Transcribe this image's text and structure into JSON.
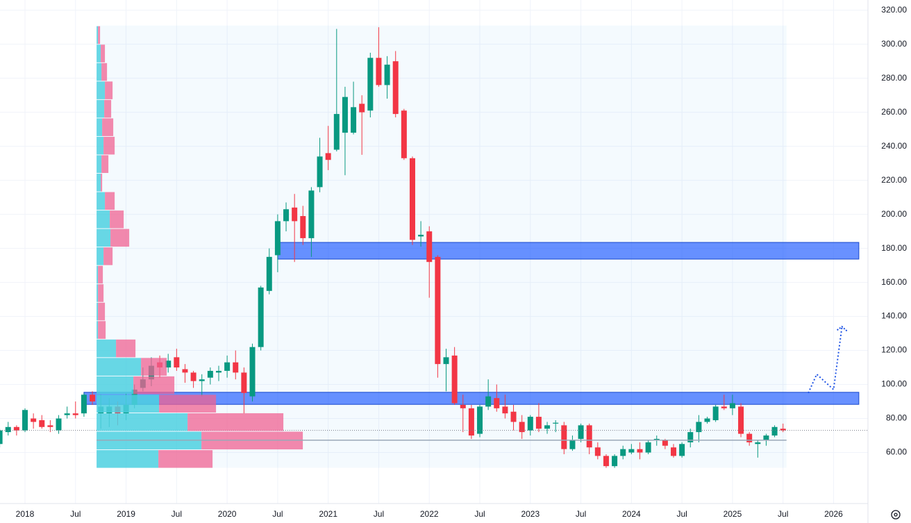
{
  "chart_data": {
    "type": "candlestick",
    "x": [
      "2017-10",
      "2017-11",
      "2017-12",
      "2018-01",
      "2018-02",
      "2018-03",
      "2018-04",
      "2018-05",
      "2018-06",
      "2018-07",
      "2018-08",
      "2018-09",
      "2018-10",
      "2018-11",
      "2018-12",
      "2019-01",
      "2019-02",
      "2019-03",
      "2019-04",
      "2019-05",
      "2019-06",
      "2019-07",
      "2019-08",
      "2019-09",
      "2019-10",
      "2019-11",
      "2019-12",
      "2020-01",
      "2020-02",
      "2020-03",
      "2020-04",
      "2020-05",
      "2020-06",
      "2020-07",
      "2020-08",
      "2020-09",
      "2020-10",
      "2020-11",
      "2020-12",
      "2021-01",
      "2021-02",
      "2021-03",
      "2021-04",
      "2021-05",
      "2021-06",
      "2021-07",
      "2021-08",
      "2021-09",
      "2021-10",
      "2021-11",
      "2021-12",
      "2022-01",
      "2022-02",
      "2022-03",
      "2022-04",
      "2022-05",
      "2022-06",
      "2022-07",
      "2022-08",
      "2022-09",
      "2022-10",
      "2022-11",
      "2022-12",
      "2023-01",
      "2023-02",
      "2023-03",
      "2023-04",
      "2023-05",
      "2023-06",
      "2023-07",
      "2023-08",
      "2023-09",
      "2023-10",
      "2023-11",
      "2023-12",
      "2024-01",
      "2024-02",
      "2024-03",
      "2024-04",
      "2024-05",
      "2024-06",
      "2024-07",
      "2024-08",
      "2024-09",
      "2024-10",
      "2024-11",
      "2024-12",
      "2025-01",
      "2025-02",
      "2025-03",
      "2025-04",
      "2025-05",
      "2025-06",
      "2025-07"
    ],
    "open": [
      65,
      72,
      75,
      73,
      80,
      79,
      76,
      73,
      82,
      83,
      83,
      94,
      83,
      83,
      87,
      83,
      88,
      98,
      103,
      113,
      110,
      116,
      109,
      107,
      102,
      104,
      107,
      108,
      113,
      107,
      93,
      122,
      155,
      176,
      196,
      204,
      199,
      186,
      216,
      236,
      238,
      248,
      248,
      265,
      261,
      292,
      276,
      290,
      261,
      233,
      187,
      190,
      175,
      112,
      117,
      88,
      86,
      71,
      87,
      92,
      87,
      84,
      78,
      73,
      81,
      74,
      77,
      76,
      62,
      68,
      76,
      63,
      58,
      52,
      58,
      60,
      62,
      60,
      67,
      67,
      63,
      58,
      66,
      72,
      78,
      79,
      87,
      86,
      87,
      71,
      65,
      67,
      70,
      74
    ],
    "high": [
      74,
      78,
      76,
      86,
      83,
      82,
      79,
      82,
      87,
      90,
      95,
      96,
      94,
      92,
      90,
      95,
      100,
      110,
      116,
      117,
      118,
      121,
      112,
      108,
      106,
      110,
      111,
      117,
      120,
      110,
      124,
      158,
      180,
      200,
      207,
      212,
      205,
      216,
      245,
      252,
      309,
      275,
      278,
      270,
      295,
      310,
      293,
      296,
      262,
      234,
      196,
      193,
      176,
      121,
      122,
      94,
      88,
      88,
      103,
      100,
      94,
      88,
      82,
      82,
      89,
      78,
      79,
      78,
      70,
      77,
      77,
      66,
      59,
      59,
      64,
      65,
      66,
      67,
      70,
      68,
      65,
      66,
      74,
      82,
      81,
      88,
      94,
      94,
      89,
      72,
      67,
      71,
      76,
      77
    ],
    "low": [
      63,
      70,
      70,
      72,
      74,
      74,
      72,
      71,
      80,
      80,
      81,
      88,
      74,
      75,
      76,
      79,
      86,
      96,
      99,
      104,
      107,
      108,
      101,
      98,
      93,
      100,
      102,
      104,
      103,
      83,
      90,
      120,
      153,
      166,
      190,
      172,
      182,
      175,
      213,
      226,
      237,
      223,
      247,
      235,
      257,
      275,
      268,
      257,
      232,
      182,
      181,
      151,
      104,
      96,
      88,
      72,
      68,
      69,
      85,
      84,
      80,
      73,
      68,
      70,
      72,
      71,
      72,
      59,
      61,
      66,
      59,
      56,
      51,
      51,
      56,
      59,
      56,
      59,
      64,
      62,
      57,
      57,
      63,
      66,
      77,
      78,
      85,
      82,
      69,
      64,
      57,
      64,
      69,
      72
    ],
    "close": [
      73,
      75,
      73,
      85,
      78,
      75,
      75,
      80,
      83,
      82,
      94,
      90,
      87,
      87,
      83,
      88,
      97,
      103,
      111,
      110,
      114,
      110,
      107,
      102,
      103,
      108,
      108,
      113,
      107,
      95,
      122,
      157,
      175,
      196,
      203,
      196,
      186,
      214,
      234,
      232,
      259,
      269,
      263,
      260,
      292,
      276,
      288,
      259,
      233,
      185,
      188,
      172,
      112,
      116,
      89,
      86,
      70,
      87,
      93,
      86,
      83,
      78,
      72,
      81,
      74,
      76,
      77.5,
      62,
      67,
      76,
      63,
      58,
      52,
      58,
      62,
      62,
      60,
      66,
      68,
      64,
      58,
      65,
      72,
      78,
      80,
      87,
      86,
      89,
      71,
      66,
      66,
      70,
      75,
      73
    ],
    "up_color": "#089981",
    "down_color": "#f23645",
    "ylim": [
      30,
      326
    ],
    "yticks": [
      {
        "value": 60,
        "label": "60.00"
      },
      {
        "value": 80,
        "label": "80.00"
      },
      {
        "value": 100,
        "label": "100.00"
      },
      {
        "value": 120,
        "label": "120.00"
      },
      {
        "value": 140,
        "label": "140.00"
      },
      {
        "value": 160,
        "label": "160.00"
      },
      {
        "value": 180,
        "label": "180.00"
      },
      {
        "value": 200,
        "label": "200.00"
      },
      {
        "value": 220,
        "label": "220.00"
      },
      {
        "value": 240,
        "label": "240.00"
      },
      {
        "value": 260,
        "label": "260.00"
      },
      {
        "value": 280,
        "label": "280.00"
      },
      {
        "value": 300,
        "label": "300.00"
      },
      {
        "value": 320,
        "label": "320.00"
      }
    ],
    "xticks": [
      {
        "value": "2018-01",
        "label": "2018"
      },
      {
        "value": "2018-07",
        "label": "Jul"
      },
      {
        "value": "2019-01",
        "label": "2019"
      },
      {
        "value": "2019-07",
        "label": "Jul"
      },
      {
        "value": "2020-01",
        "label": "2020"
      },
      {
        "value": "2020-07",
        "label": "Jul"
      },
      {
        "value": "2021-01",
        "label": "2021"
      },
      {
        "value": "2021-07",
        "label": "Jul"
      },
      {
        "value": "2022-01",
        "label": "2022"
      },
      {
        "value": "2022-07",
        "label": "Jul"
      },
      {
        "value": "2023-01",
        "label": "2023"
      },
      {
        "value": "2023-07",
        "label": "Jul"
      },
      {
        "value": "2024-01",
        "label": "2024"
      },
      {
        "value": "2024-07",
        "label": "Jul"
      },
      {
        "value": "2025-01",
        "label": "2025"
      },
      {
        "value": "2025-07",
        "label": "Jul"
      },
      {
        "value": "2026-01",
        "label": "2026"
      }
    ],
    "grid": true,
    "zones": [
      {
        "low": 173.7,
        "high": 183.5,
        "start": "2020-07",
        "end": "2026-04",
        "color": "#2962ff"
      },
      {
        "low": 88.3,
        "high": 95.4,
        "start": "2018-08",
        "end": "2026-04",
        "color": "#2962ff"
      }
    ],
    "volume_profile": {
      "start": "2018-09",
      "end": "2025-07",
      "ylim": [
        51,
        311
      ],
      "up_color": "#4dd0e1",
      "down_color": "#f06292",
      "up": [
        89,
        151,
        131,
        90,
        53,
        64,
        28,
        2,
        2,
        2,
        2,
        10,
        20,
        19,
        12,
        6,
        7,
        10,
        8,
        11,
        12,
        7,
        6,
        2
      ],
      "down": [
        78,
        146,
        138,
        82,
        59,
        37,
        28,
        11,
        10,
        8,
        7,
        13,
        27,
        20,
        14,
        2,
        10,
        16,
        16,
        10,
        11,
        8,
        6,
        3
      ]
    },
    "projection": {
      "x": [
        "2025-10",
        "2025-11",
        "2026-01",
        "2026-02"
      ],
      "values": [
        95,
        106,
        97,
        134
      ],
      "color": "#1e53e5"
    }
  }
}
